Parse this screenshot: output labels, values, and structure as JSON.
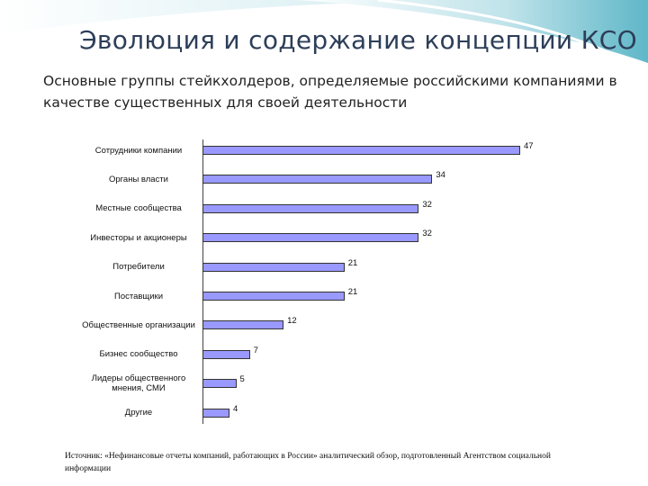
{
  "title": "Эволюция и содержание концепции КСО",
  "subtitle": "Основные группы стейкхолдеров, определяемые российскими компаниями в качестве существенных для своей деятельности",
  "source": "Источник: «Нефинансовые отчеты компаний, работающих в России» аналитический обзор, подготовленный Агентством социальной информации",
  "chart_data": {
    "type": "bar",
    "orientation": "horizontal",
    "color": "#9999ff",
    "categories": [
      "Сотрудники компании",
      "Органы власти",
      "Местные сообщества",
      "Инвесторы и акционеры",
      "Потребители",
      "Поставщики",
      "Общественные организации",
      "Бизнес сообщество",
      "Лидеры общественного мнения, СМИ",
      "Другие"
    ],
    "values": [
      47,
      34,
      32,
      32,
      21,
      21,
      12,
      7,
      5,
      4
    ]
  }
}
